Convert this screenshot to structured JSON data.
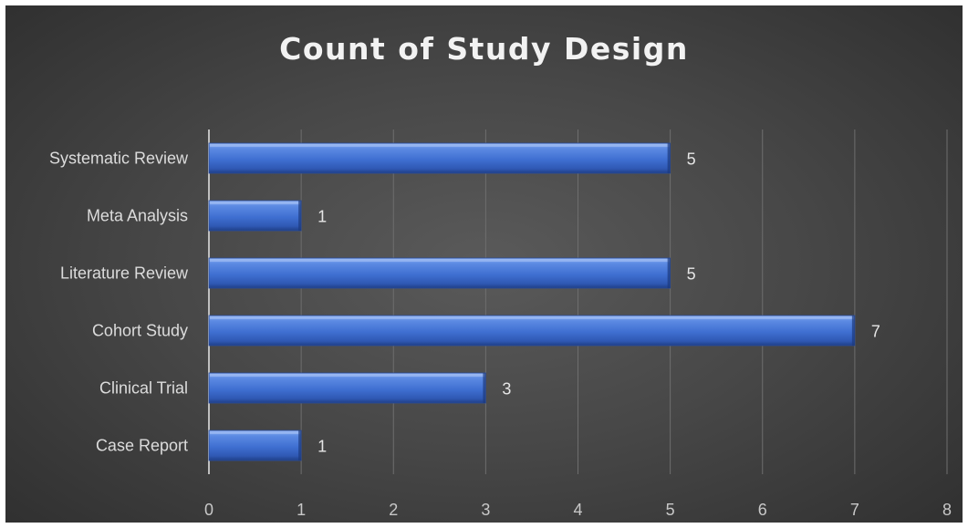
{
  "chart_data": {
    "type": "bar",
    "orientation": "horizontal",
    "title": "Count of Study Design",
    "categories": [
      "Systematic Review",
      "Meta Analysis",
      "Literature Review",
      "Cohort Study",
      "Clinical Trial",
      "Case Report"
    ],
    "values": [
      5,
      1,
      5,
      7,
      3,
      1
    ],
    "xlim": [
      0,
      8
    ],
    "x_ticks": [
      "0",
      "1",
      "2",
      "3",
      "4",
      "5",
      "6",
      "7",
      "8"
    ],
    "grid": true,
    "legend": "none",
    "data_labels": true
  },
  "colors": {
    "background": "#474747",
    "bar": "#4a78d6",
    "text": "#dcdcdc",
    "grid": "#6e6e6e"
  }
}
